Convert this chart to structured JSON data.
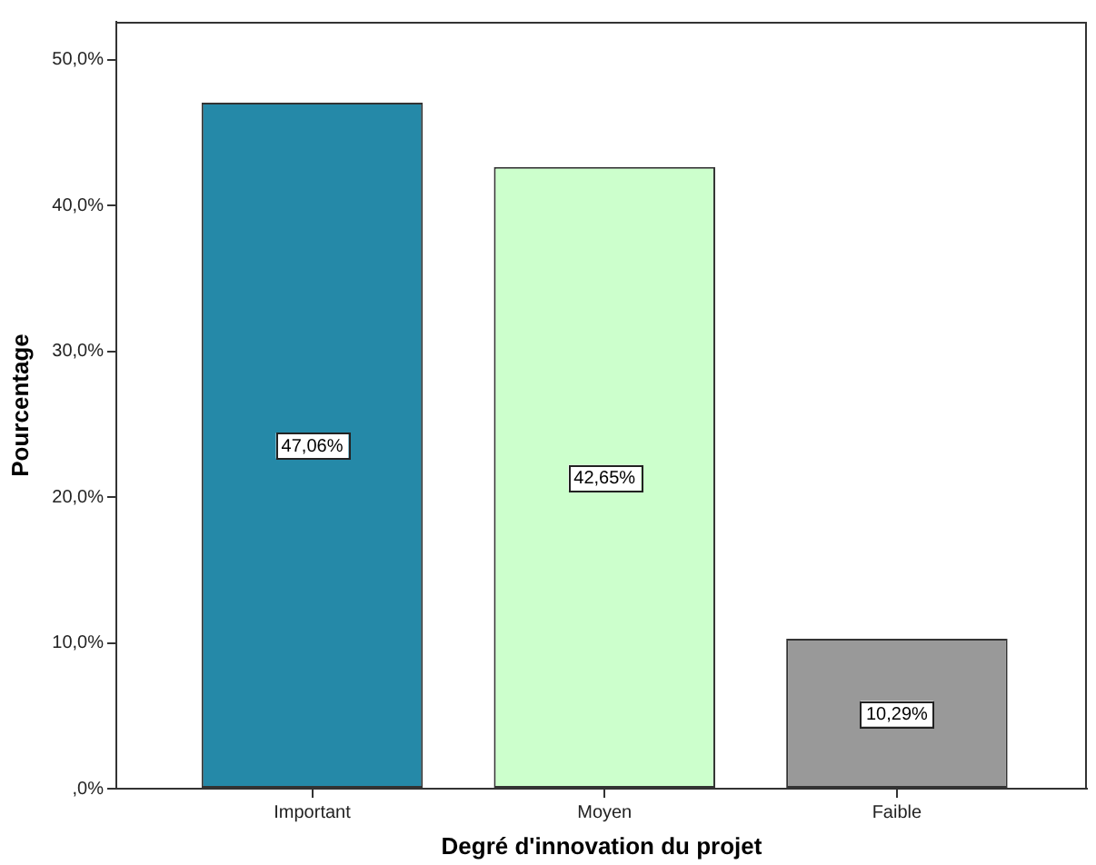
{
  "chart_data": {
    "type": "bar",
    "xlabel": "Degré d'innovation du projet",
    "ylabel": "Pourcentage",
    "categories": [
      "Important",
      "Moyen",
      "Faible"
    ],
    "values": [
      47.06,
      42.65,
      10.29
    ],
    "colors": [
      "#2589a8",
      "#ccffcc",
      "#999999"
    ],
    "value_labels": [
      "47,06%",
      "42,65%",
      "10,29%"
    ],
    "ylim": [
      0,
      52.6
    ],
    "yticks": [
      {
        "value": 0,
        "label": ",0%"
      },
      {
        "value": 10,
        "label": "10,0%"
      },
      {
        "value": 20,
        "label": "20,0%"
      },
      {
        "value": 30,
        "label": "30,0%"
      },
      {
        "value": 40,
        "label": "40,0%"
      },
      {
        "value": 50,
        "label": "50,0%"
      }
    ],
    "grid": false,
    "legend": false
  }
}
